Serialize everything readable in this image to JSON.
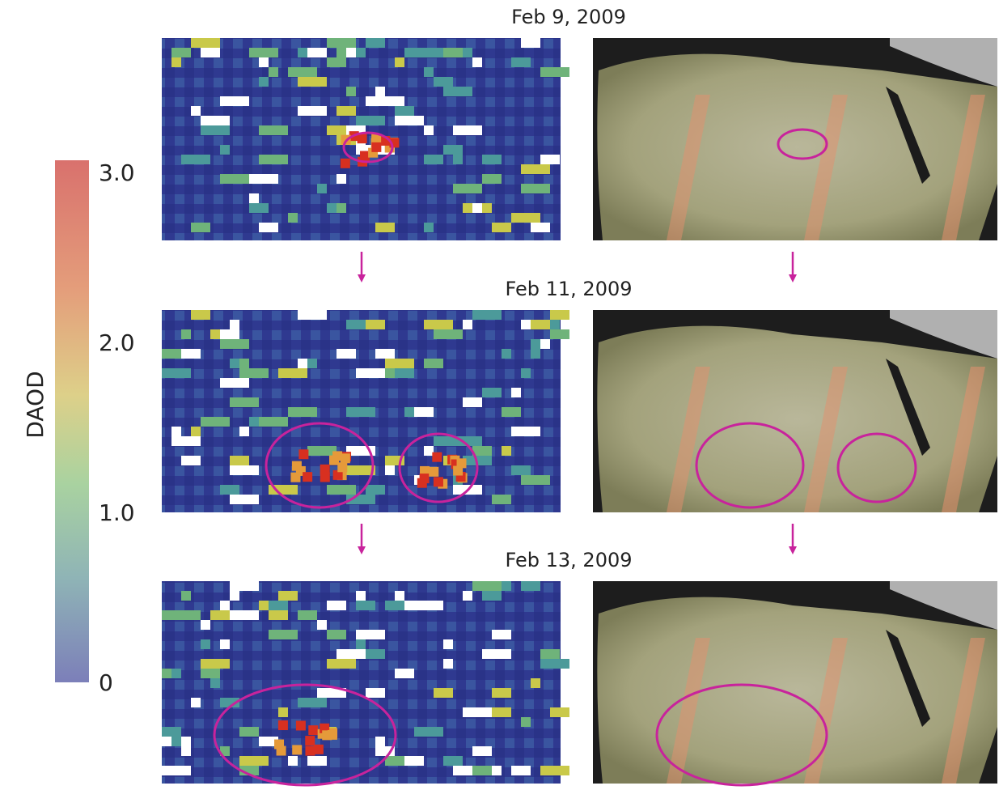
{
  "panels": [
    {
      "date": "Feb 9, 2009"
    },
    {
      "date": "Feb 11, 2009"
    },
    {
      "date": "Feb 13, 2009"
    }
  ],
  "colorbar": {
    "label": "DAOD",
    "range": [
      0,
      3
    ],
    "ticks": [
      {
        "value": 3,
        "label": "3.0"
      },
      {
        "value": 2,
        "label": "2.0"
      },
      {
        "value": 1,
        "label": "1.0"
      },
      0
    ]
  }
}
